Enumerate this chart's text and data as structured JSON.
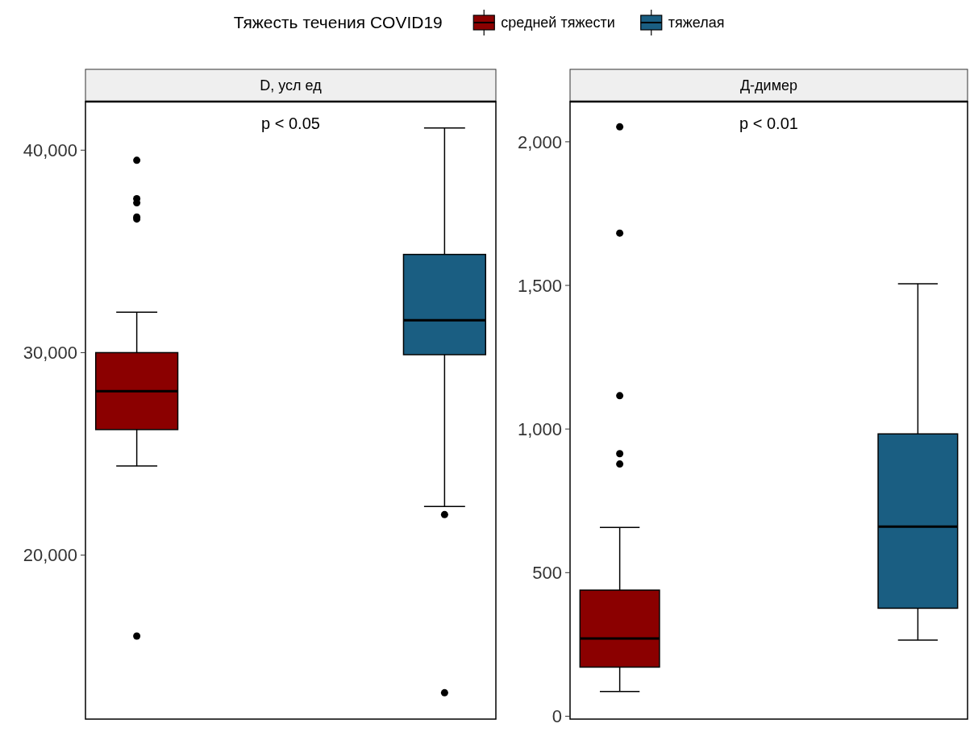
{
  "chart_data": [
    {
      "type": "box",
      "title": "D, усл ед",
      "categories": [
        null,
        null
      ],
      "legend_title": "Тяжесть течения COVID19",
      "legend": "top",
      "tick_labels": "y",
      "ylim": [
        11900,
        42400
      ],
      "yticks": [
        {
          "value": 20000,
          "label": "20,000"
        },
        {
          "value": 30000,
          "label": "30,000"
        },
        {
          "value": 40000,
          "label": "40,000"
        }
      ],
      "annotations": [
        "p < 0.05"
      ],
      "series": [
        {
          "name": "средней тяжести",
          "color": "#8b0000",
          "boxes": [
            {
              "low": 24400,
              "q1": 26200,
              "median": 28100,
              "q3": 30000,
              "high": 32000,
              "outliers": [
                39500,
                37600,
                37400,
                36700,
                36600,
                16000
              ]
            },
            null
          ]
        },
        {
          "name": "тяжелая",
          "color": "#1a5e82",
          "boxes": [
            null,
            {
              "low": 22400,
              "q1": 29900,
              "median": 31600,
              "q3": 34850,
              "high": 41100,
              "outliers": [
                22000,
                13200
              ]
            }
          ]
        }
      ]
    },
    {
      "type": "box",
      "title": "Д-димер",
      "categories": [
        null,
        null
      ],
      "tick_labels": "y",
      "ylim": [
        -10,
        2140
      ],
      "yticks": [
        0,
        {
          "value": 500,
          "label": "500"
        },
        {
          "value": 1000,
          "label": "1,000"
        },
        {
          "value": 1500,
          "label": "1,500"
        },
        {
          "value": 2000,
          "label": "2,000"
        }
      ],
      "annotations": [
        "p < 0.01"
      ],
      "series": [
        {
          "color": "#8b0000",
          "boxes": [
            {
              "low": 86,
              "q1": 171,
              "median": 271,
              "q3": 439,
              "high": 657,
              "outliers": [
                2052,
                1682,
                1116,
                914,
                878
              ]
            },
            null
          ]
        },
        {
          "color": "#1a5e82",
          "boxes": [
            null,
            {
              "low": 265,
              "q1": 376,
              "median": 660,
              "q3": 983,
              "high": 1506
            }
          ]
        }
      ]
    }
  ]
}
